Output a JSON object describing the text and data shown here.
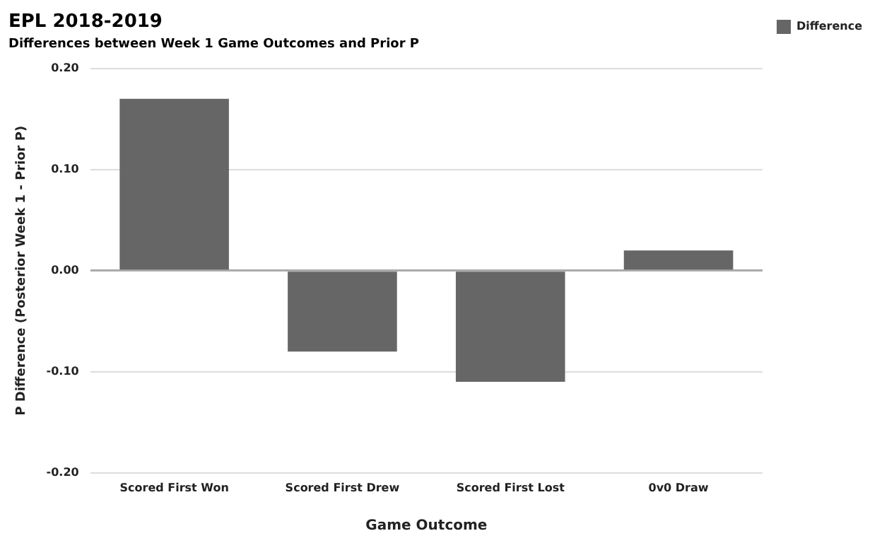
{
  "chart_data": {
    "type": "bar",
    "title": "EPL 2018-2019",
    "subtitle": "Differences between Week 1 Game Outcomes and Prior P",
    "xlabel": "Game Outcome",
    "ylabel": "P Difference (Posterior Week 1 - Prior P)",
    "categories": [
      "Scored First Won",
      "Scored First Drew",
      "Scored First Lost",
      "0v0 Draw"
    ],
    "series": [
      {
        "name": "Difference",
        "color": "#666666",
        "values": [
          0.17,
          -0.08,
          -0.11,
          0.02
        ]
      }
    ],
    "ylim": [
      -0.2,
      0.2
    ],
    "yticks": [
      {
        "value": -0.2,
        "label": "-0.20"
      },
      {
        "value": -0.1,
        "label": "-0.10"
      },
      {
        "value": 0,
        "label": "0.00"
      },
      {
        "value": 0.1,
        "label": "0.10"
      },
      {
        "value": 0.2,
        "label": "0.20"
      }
    ],
    "grid": "y",
    "legend": "top right"
  }
}
